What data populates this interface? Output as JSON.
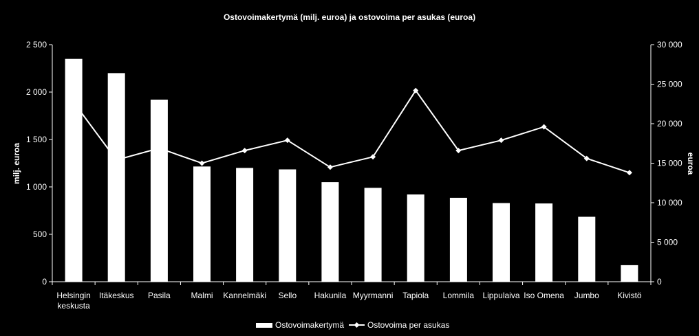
{
  "chart_data": {
    "type": "bar",
    "title": "Ostovoimakertymä (milj. euroa) ja ostovoima per asukas (euroa)",
    "categories": [
      [
        "Helsingin",
        "keskusta"
      ],
      [
        "Itäkeskus"
      ],
      [
        "Pasila"
      ],
      [
        "Malmi"
      ],
      [
        "Kannelmäki"
      ],
      [
        "Sello"
      ],
      [
        "Hakunila"
      ],
      [
        "Myyrmanni"
      ],
      [
        "Tapiola"
      ],
      [
        "Lommila"
      ],
      [
        "Lippulaiva"
      ],
      [
        "Iso Omena"
      ],
      [
        "Jumbo"
      ],
      [
        "Kivistö"
      ]
    ],
    "ylabel": "milj. euroa",
    "y2label": "euroa",
    "ylim": [
      0,
      2500
    ],
    "y2lim": [
      0,
      30000
    ],
    "yticks": [
      0,
      500,
      1000,
      1500,
      2000,
      2500
    ],
    "yticks_labels": [
      "0",
      "500",
      "1 000",
      "1 500",
      "2 000",
      "2 500"
    ],
    "y2ticks": [
      0,
      5000,
      10000,
      15000,
      20000,
      25000,
      30000
    ],
    "y2ticks_labels": [
      "0",
      "5 000",
      "10 000",
      "15 000",
      "20 000",
      "25 000",
      "30 000"
    ],
    "series": [
      {
        "name": "Ostovoimakertymä",
        "type": "bar",
        "axis": "left",
        "values": [
          2350,
          2200,
          1920,
          1215,
          1200,
          1185,
          1050,
          990,
          920,
          885,
          830,
          825,
          685,
          175
        ]
      },
      {
        "name": "Ostovoima per asukas",
        "type": "line",
        "axis": "right",
        "values": [
          22700,
          15400,
          16900,
          15000,
          16600,
          17900,
          14500,
          15800,
          24200,
          16600,
          17900,
          19600,
          15600,
          13800
        ]
      }
    ],
    "grid": false,
    "legend": "bottom",
    "colors": {
      "background": "#000000",
      "bars": "#ffffff",
      "line": "#ffffff",
      "text": "#ffffff"
    }
  }
}
